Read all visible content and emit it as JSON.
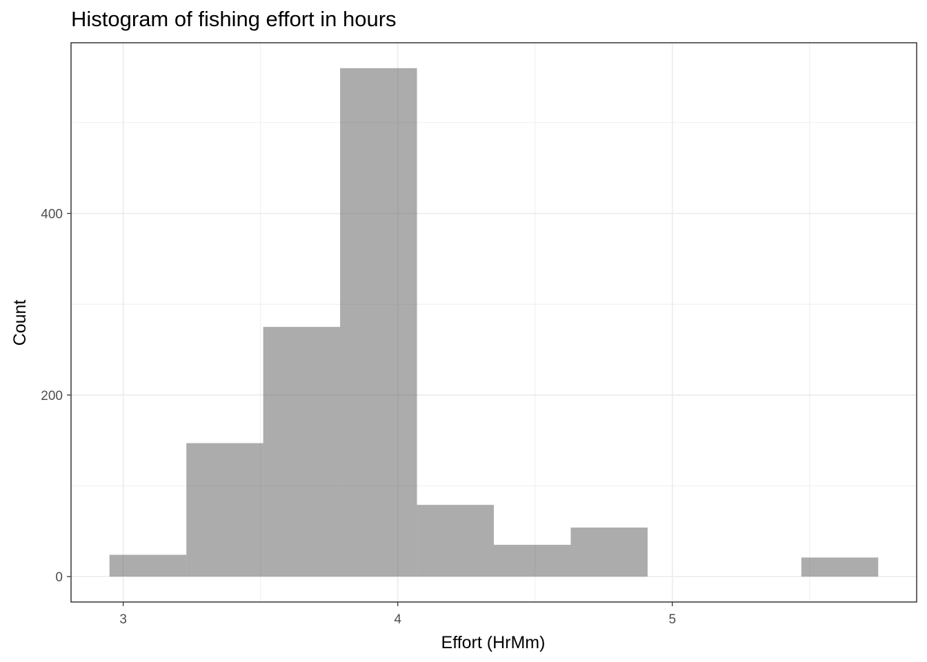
{
  "chart_data": {
    "type": "bar",
    "title": "Histogram of fishing effort in hours",
    "xlabel": "Effort (HrMm)",
    "ylabel": "Count",
    "bin_width": 0.28,
    "bins": [
      {
        "x0": 2.95,
        "x1": 3.23,
        "count": 24
      },
      {
        "x0": 3.23,
        "x1": 3.51,
        "count": 147
      },
      {
        "x0": 3.51,
        "x1": 3.79,
        "count": 275
      },
      {
        "x0": 3.79,
        "x1": 4.07,
        "count": 560
      },
      {
        "x0": 4.07,
        "x1": 4.35,
        "count": 79
      },
      {
        "x0": 4.35,
        "x1": 4.63,
        "count": 35
      },
      {
        "x0": 4.63,
        "x1": 4.91,
        "count": 54
      },
      {
        "x0": 5.47,
        "x1": 5.75,
        "count": 21
      }
    ],
    "xlim": [
      2.81,
      5.89
    ],
    "ylim": [
      -28,
      588
    ],
    "x_ticks": [
      3,
      4,
      5
    ],
    "x_tick_labels": [
      "3",
      "4",
      "5"
    ],
    "y_ticks": [
      0,
      200,
      400
    ],
    "y_tick_labels": [
      "0",
      "200",
      "400"
    ],
    "grid": true,
    "bar_color": "#595959",
    "bar_opacity": 0.5,
    "grid_color": "#ebebeb",
    "panel_border_color": "#333333"
  }
}
